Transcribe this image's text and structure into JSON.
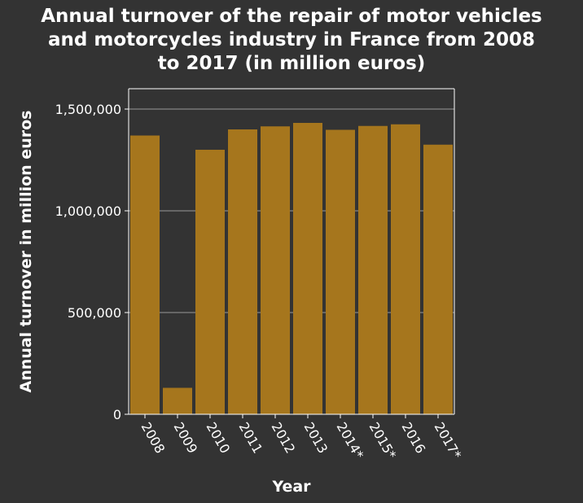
{
  "chart_data": {
    "type": "bar",
    "title_lines": [
      "Annual turnover of the repair of motor vehicles",
      "and motorcycles industry in France from 2008",
      "to 2017 (in million euros)"
    ],
    "xlabel": "Year",
    "ylabel": "Annual turnover in million euros",
    "categories": [
      "2008",
      "2009",
      "2010",
      "2011",
      "2012",
      "2013",
      "2014*",
      "2015*",
      "2016",
      "2017*"
    ],
    "values": [
      1370000,
      130000,
      1300000,
      1400000,
      1415000,
      1432000,
      1398000,
      1417000,
      1425000,
      1325000
    ],
    "ylim": [
      0,
      1500000
    ],
    "yticks": [
      0,
      500000,
      1000000,
      1500000
    ],
    "ytick_labels": [
      "0",
      "500,000",
      "1,000,000",
      "1,500,000"
    ],
    "grid": true,
    "bar_color": "#a6761d"
  }
}
